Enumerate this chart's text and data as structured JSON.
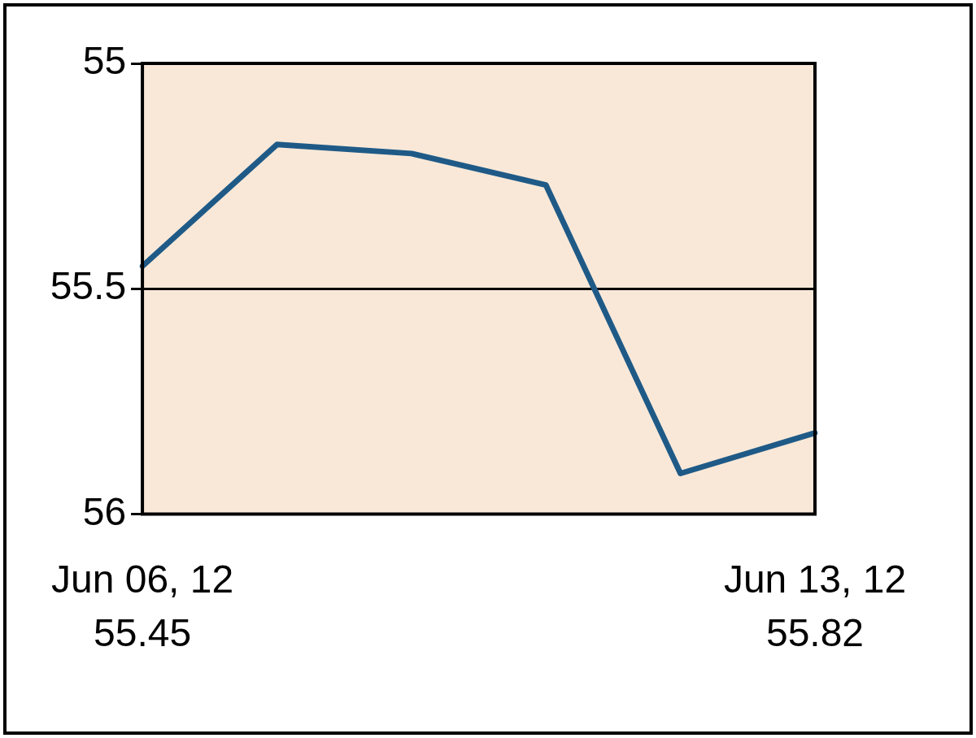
{
  "chart_data": {
    "type": "line",
    "categories": [
      "Jun 06, 12",
      null,
      null,
      null,
      null,
      "Jun 13, 12"
    ],
    "values": [
      55.45,
      55.18,
      55.2,
      55.27,
      55.91,
      55.82
    ],
    "value_labels": [
      "55.45",
      null,
      null,
      null,
      null,
      "55.82"
    ],
    "color": "#1f5a87",
    "ylim": [
      56,
      55
    ],
    "yticks": [
      55,
      55.5,
      56
    ],
    "grid": "y",
    "legend": false,
    "marker": "none",
    "line_style": "solid"
  }
}
